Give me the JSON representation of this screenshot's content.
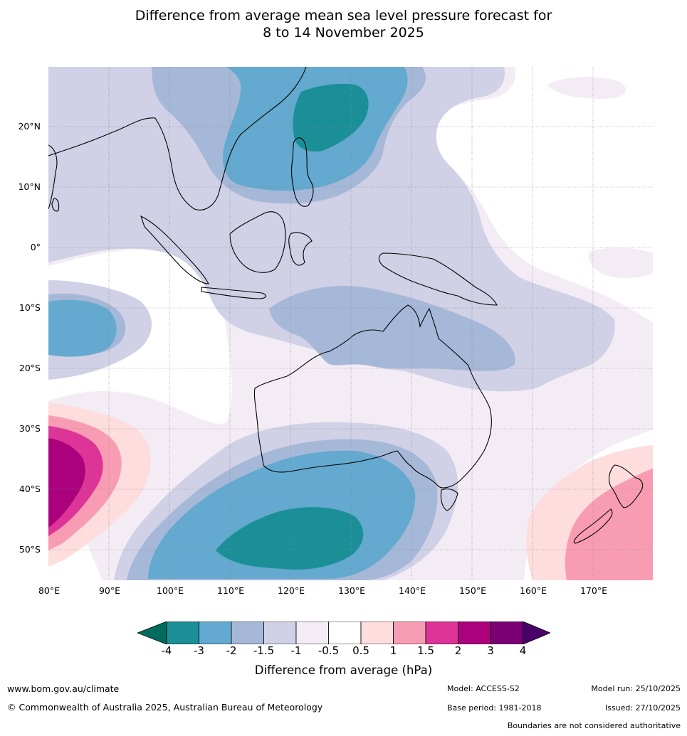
{
  "title": {
    "line1": "Difference from average mean sea level pressure forecast for",
    "line2": "8 to 14 November 2025"
  },
  "map": {
    "lat_labels": [
      "20°N",
      "10°N",
      "0°",
      "10°S",
      "20°S",
      "30°S",
      "40°S",
      "50°S"
    ],
    "lon_labels": [
      "80°E",
      "90°E",
      "100°E",
      "110°E",
      "120°E",
      "130°E",
      "140°E",
      "150°E",
      "160°E",
      "170°E"
    ],
    "extent": {
      "lon": [
        80,
        180
      ],
      "lat": [
        -55,
        30
      ]
    }
  },
  "colorbar": {
    "title": "Difference from average (hPa)",
    "tick_labels": [
      "-4",
      "-3",
      "-2",
      "-1.5",
      "-1",
      "-0.5",
      "0.5",
      "1",
      "1.5",
      "2",
      "3",
      "4"
    ],
    "colors": [
      "#006b5e",
      "#1b8f97",
      "#64a9cf",
      "#a6b8d8",
      "#d0d0e6",
      "#f4ecf5",
      "#ffffff",
      "#fddddd",
      "#f89cb4",
      "#dd3597",
      "#ac017d",
      "#7b0076",
      "#490068"
    ]
  },
  "footer": {
    "website": "www.bom.gov.au/climate",
    "copyright": "© Commonwealth of Australia 2025, Australian Bureau of Meteorology",
    "model": "Model: ACCESS-S2",
    "base_period": "Base period: 1981-2018",
    "model_run": "Model run: 25/10/2025",
    "issued": "Issued: 27/10/2025",
    "disclaimer": "Boundaries are not considered authoritative"
  }
}
